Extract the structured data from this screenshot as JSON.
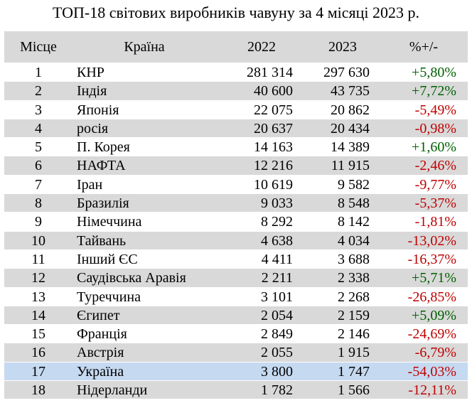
{
  "title": "ТОП-18 світових виробників чавуну за 4 місяці 2023 р.",
  "colors": {
    "header_bg": "#d9d9d9",
    "stripe_bg": "#d9d9d9",
    "highlight_bg": "#c5d9f1",
    "positive": "#006100",
    "negative": "#c00000"
  },
  "chart_data": {
    "type": "table",
    "title": "ТОП-18 світових виробників чавуну за 4 місяці 2023 р.",
    "columns": [
      "Місце",
      "Країна",
      "2022",
      "2023",
      "%+/-"
    ],
    "rows": [
      {
        "rank": "1",
        "country": "КНР",
        "v2022": "281 314",
        "v2023": "297 630",
        "change": "+5,80%"
      },
      {
        "rank": "2",
        "country": "Індія",
        "v2022": "40 600",
        "v2023": "43 735",
        "change": "+7,72%"
      },
      {
        "rank": "3",
        "country": "Японія",
        "v2022": "22 075",
        "v2023": "20 862",
        "change": "-5,49%"
      },
      {
        "rank": "4",
        "country": "росія",
        "v2022": "20 637",
        "v2023": "20 434",
        "change": "-0,98%"
      },
      {
        "rank": "5",
        "country": "П. Корея",
        "v2022": "14 163",
        "v2023": "14 389",
        "change": "+1,60%"
      },
      {
        "rank": "6",
        "country": "НАФТА",
        "v2022": "12 216",
        "v2023": "11 915",
        "change": "-2,46%"
      },
      {
        "rank": "7",
        "country": "Іран",
        "v2022": "10 619",
        "v2023": "9 582",
        "change": "-9,77%"
      },
      {
        "rank": "8",
        "country": "Бразилія",
        "v2022": "9 033",
        "v2023": "8 548",
        "change": "-5,37%"
      },
      {
        "rank": "9",
        "country": "Німеччина",
        "v2022": "8 292",
        "v2023": "8 142",
        "change": "-1,81%"
      },
      {
        "rank": "10",
        "country": "Тайвань",
        "v2022": "4 638",
        "v2023": "4 034",
        "change": "-13,02%"
      },
      {
        "rank": "11",
        "country": "Інший ЄС",
        "v2022": "4 411",
        "v2023": "3 688",
        "change": "-16,37%"
      },
      {
        "rank": "12",
        "country": "Саудівська Аравія",
        "v2022": "2 211",
        "v2023": "2 338",
        "change": "+5,71%"
      },
      {
        "rank": "13",
        "country": "Туреччина",
        "v2022": "3 101",
        "v2023": "2 268",
        "change": "-26,85%"
      },
      {
        "rank": "14",
        "country": "Єгипет",
        "v2022": "2 054",
        "v2023": "2 159",
        "change": "+5,09%"
      },
      {
        "rank": "15",
        "country": "Франція",
        "v2022": "2 849",
        "v2023": "2 146",
        "change": "-24,69%"
      },
      {
        "rank": "16",
        "country": "Австрія",
        "v2022": "2 055",
        "v2023": "1 915",
        "change": "-6,79%"
      },
      {
        "rank": "17",
        "country": "Україна",
        "v2022": "3 800",
        "v2023": "1 747",
        "change": "-54,03%",
        "highlight": true
      },
      {
        "rank": "18",
        "country": "Нідерланди",
        "v2022": "1 782",
        "v2023": "1 566",
        "change": "-12,11%"
      }
    ]
  }
}
